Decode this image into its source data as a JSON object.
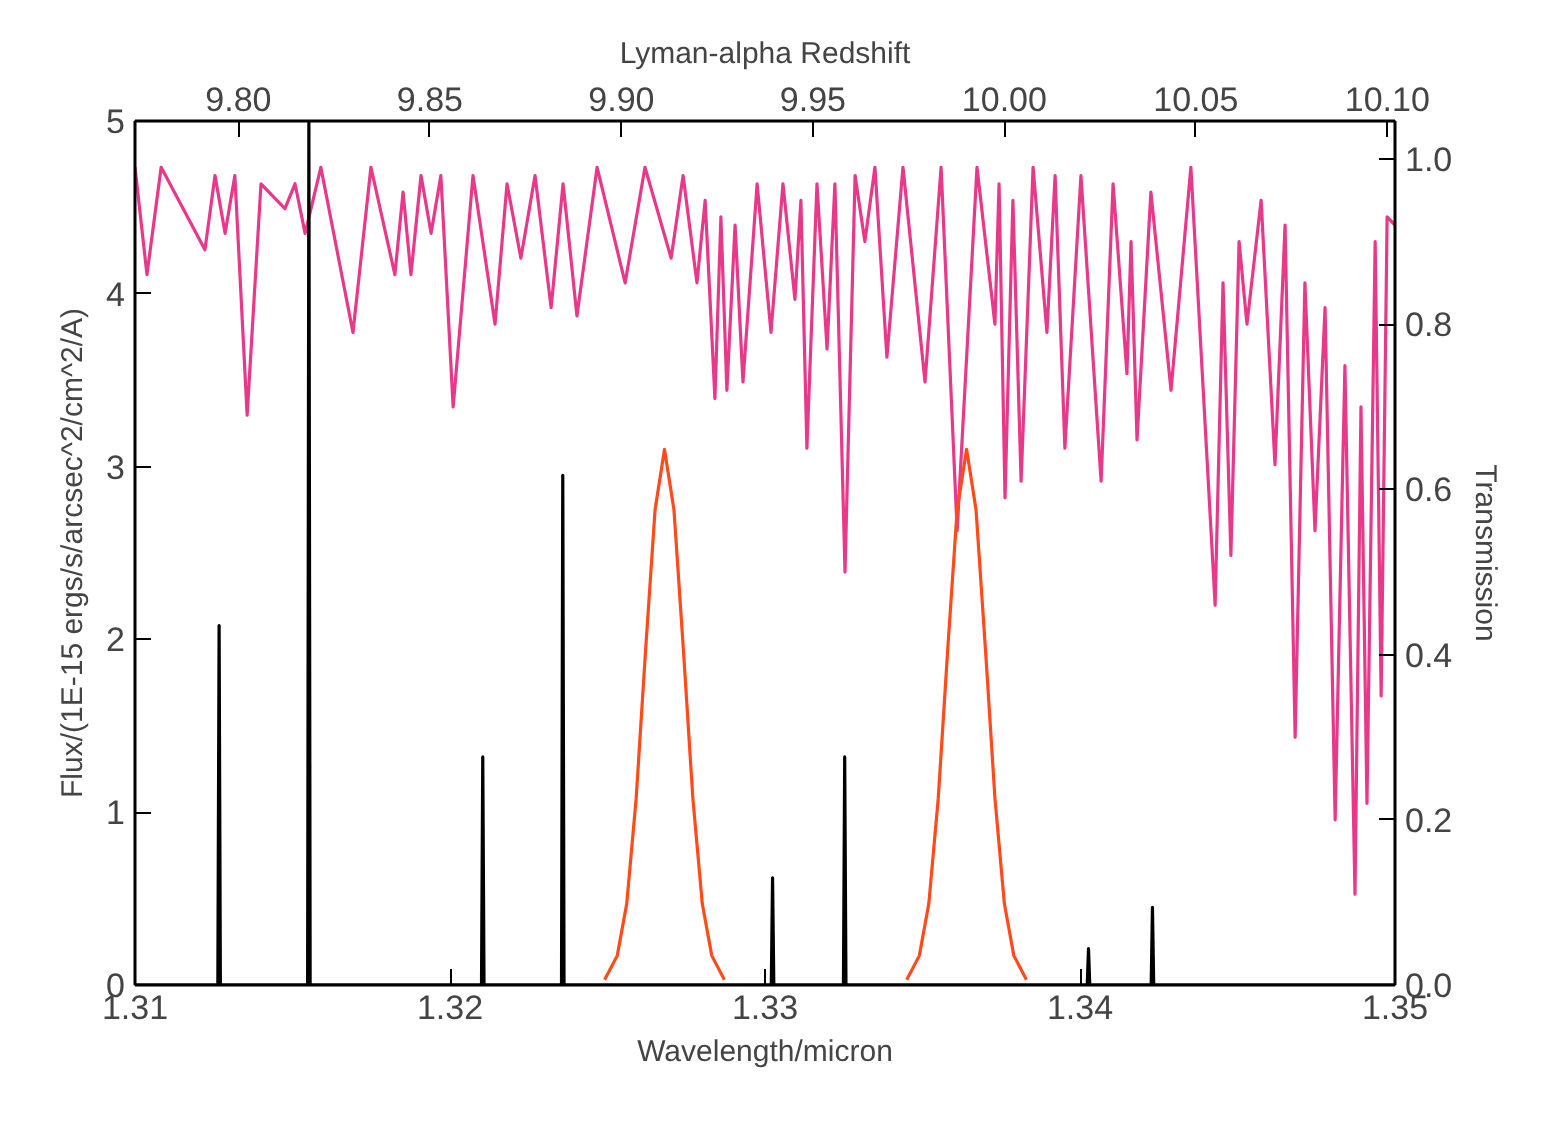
{
  "chart_data": {
    "type": "line",
    "xlabel": "Wavelength/micron",
    "ylabel": "Flux/(1E-15 ergs/s/arcsec^2/cm^2/A)",
    "y2label": "Transmission",
    "x2label": "Lyman-alpha Redshift",
    "xlim": [
      1.31,
      1.35
    ],
    "xticks": [
      1.31,
      1.32,
      1.33,
      1.34,
      1.35
    ],
    "ylim": [
      0,
      5
    ],
    "yticks": [
      0,
      1,
      2,
      3,
      4,
      5
    ],
    "y2lim": [
      0,
      1.046
    ],
    "y2ticks": [
      {
        "value": 0,
        "label": "0.0"
      },
      {
        "value": 0.2,
        "label": "0.2"
      },
      {
        "value": 0.4,
        "label": "0.4"
      },
      {
        "value": 0.6,
        "label": "0.6"
      },
      {
        "value": 0.8,
        "label": "0.8"
      },
      {
        "value": 1.0,
        "label": "1.0"
      }
    ],
    "x2lim": [
      9.773,
      10.102
    ],
    "x2ticks": [
      {
        "value": 9.8,
        "label": "9.80"
      },
      {
        "value": 9.85,
        "label": "9.85"
      },
      {
        "value": 9.9,
        "label": "9.90"
      },
      {
        "value": 9.95,
        "label": "9.95"
      },
      {
        "value": 10.0,
        "label": "10.00"
      },
      {
        "value": 10.05,
        "label": "10.05"
      },
      {
        "value": 10.1,
        "label": "10.10"
      }
    ],
    "grid": false,
    "series": [
      {
        "color": "#e8388a",
        "axis": "y2",
        "x": [
          1.31,
          1.31038,
          1.31083,
          1.31222,
          1.31254,
          1.31286,
          1.31317,
          1.31356,
          1.314,
          1.31476,
          1.31508,
          1.3154,
          1.3159,
          1.31692,
          1.31749,
          1.31825,
          1.31851,
          1.31876,
          1.31908,
          1.3194,
          1.31971,
          1.3201,
          1.32073,
          1.32143,
          1.32181,
          1.32225,
          1.3227,
          1.32321,
          1.32359,
          1.32403,
          1.32467,
          1.32556,
          1.32619,
          1.32702,
          1.3274,
          1.32784,
          1.3281,
          1.32841,
          1.3286,
          1.32879,
          1.32905,
          1.3293,
          1.32975,
          1.33019,
          1.33057,
          1.33095,
          1.33114,
          1.33133,
          1.33165,
          1.33197,
          1.33222,
          1.33254,
          1.33286,
          1.33317,
          1.33349,
          1.33387,
          1.33438,
          1.33508,
          1.33559,
          1.3361,
          1.33673,
          1.3373,
          1.33743,
          1.33762,
          1.33787,
          1.33813,
          1.33851,
          1.33895,
          1.33921,
          1.33952,
          1.34003,
          1.34067,
          1.34105,
          1.34149,
          1.34162,
          1.34181,
          1.34225,
          1.34289,
          1.34352,
          1.34429,
          1.34454,
          1.34479,
          1.34505,
          1.3453,
          1.34575,
          1.34619,
          1.34651,
          1.34683,
          1.34714,
          1.34746,
          1.34778,
          1.3481,
          1.34841,
          1.34873,
          1.34892,
          1.34911,
          1.34937,
          1.34956,
          1.34975,
          1.35
        ],
        "values": [
          0.99,
          0.86,
          0.99,
          0.89,
          0.98,
          0.91,
          0.98,
          0.69,
          0.97,
          0.94,
          0.97,
          0.91,
          0.99,
          0.79,
          0.99,
          0.86,
          0.96,
          0.86,
          0.98,
          0.91,
          0.98,
          0.7,
          0.98,
          0.8,
          0.97,
          0.88,
          0.98,
          0.82,
          0.97,
          0.81,
          0.99,
          0.85,
          0.99,
          0.88,
          0.98,
          0.85,
          0.95,
          0.71,
          0.93,
          0.72,
          0.92,
          0.73,
          0.97,
          0.79,
          0.97,
          0.83,
          0.95,
          0.65,
          0.97,
          0.77,
          0.97,
          0.5,
          0.98,
          0.9,
          0.99,
          0.76,
          0.99,
          0.73,
          0.99,
          0.55,
          0.99,
          0.8,
          0.97,
          0.59,
          0.95,
          0.61,
          0.99,
          0.79,
          0.98,
          0.65,
          0.98,
          0.61,
          0.97,
          0.74,
          0.9,
          0.66,
          0.96,
          0.72,
          0.99,
          0.46,
          0.85,
          0.52,
          0.9,
          0.8,
          0.95,
          0.63,
          0.92,
          0.3,
          0.85,
          0.55,
          0.82,
          0.2,
          0.75,
          0.11,
          0.7,
          0.22,
          0.9,
          0.35,
          0.93,
          0.92
        ]
      },
      {
        "color": "#000000",
        "x": [
          1.31,
          1.31263,
          1.31267,
          1.31271,
          1.31548,
          1.31552,
          1.31556,
          1.321,
          1.32104,
          1.32108,
          1.32354,
          1.32358,
          1.32362,
          1.3302,
          1.33024,
          1.33028,
          1.33249,
          1.33253,
          1.33257,
          1.34023,
          1.34027,
          1.34031,
          1.34226,
          1.3423,
          1.34234,
          1.35
        ],
        "values": [
          0,
          0,
          2.08,
          0,
          0,
          5.0,
          0,
          0,
          1.32,
          0,
          0,
          2.95,
          0,
          0,
          0.62,
          0,
          0,
          1.32,
          0,
          0,
          0.21,
          0,
          0,
          0.45,
          0,
          0
        ]
      },
      {
        "color": "#ff4a1a",
        "x": [
          1.32491,
          1.32531,
          1.32561,
          1.32591,
          1.32621,
          1.32651,
          1.32681,
          1.32711,
          1.32741,
          1.32771,
          1.32801,
          1.32831,
          1.32871,
          1.33,
          1.3345,
          1.3349,
          1.3352,
          1.3355,
          1.3358,
          1.3361,
          1.3364,
          1.3367,
          1.337,
          1.3373,
          1.3376,
          1.3379,
          1.3383
        ],
        "values": [
          0.03,
          0.17,
          0.47,
          1.08,
          1.94,
          2.75,
          3.1,
          2.75,
          1.94,
          1.08,
          0.47,
          0.17,
          0.03,
          null,
          0.03,
          0.17,
          0.47,
          1.08,
          1.94,
          2.75,
          3.1,
          2.75,
          1.94,
          1.08,
          0.47,
          0.17,
          0.03
        ]
      }
    ]
  }
}
